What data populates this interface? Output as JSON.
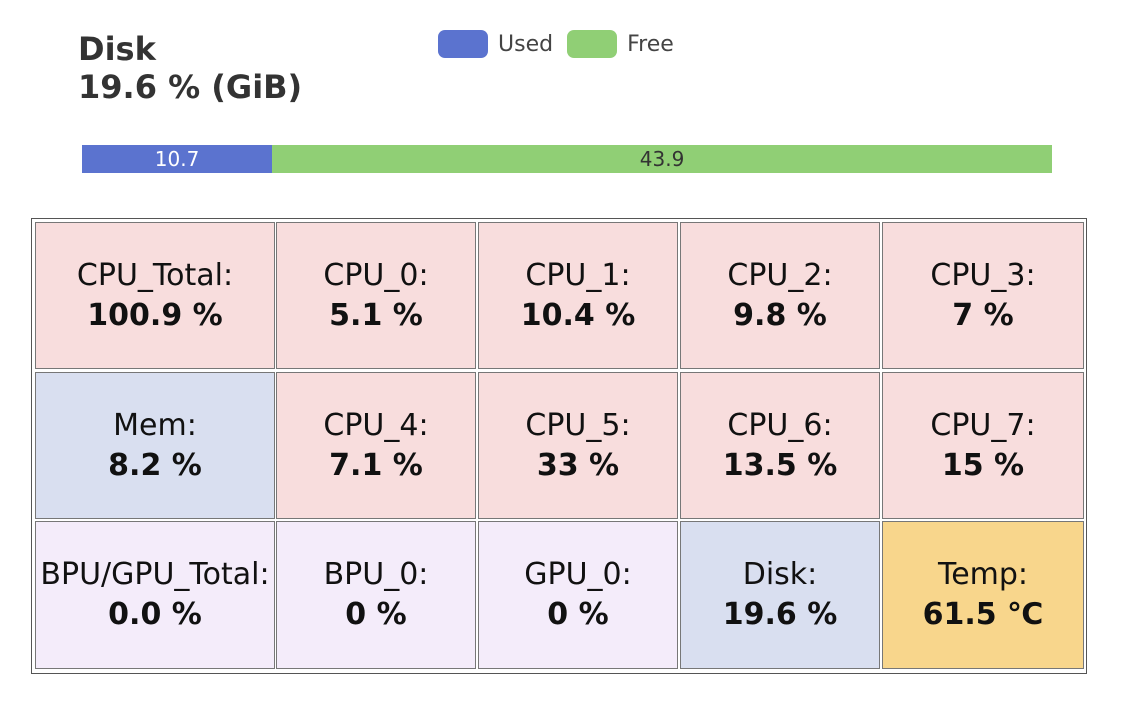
{
  "disk_header": {
    "name": "Disk",
    "summary": "19.6 % (GiB)"
  },
  "chart_data": {
    "type": "bar",
    "orientation": "horizontal",
    "stacked": true,
    "title": "",
    "legend": [
      {
        "label": "Used",
        "color": "#5b73cf"
      },
      {
        "label": "Free",
        "color": "#90cf75"
      }
    ],
    "series": [
      {
        "name": "Used",
        "values": [
          10.7
        ],
        "color": "#5b73cf"
      },
      {
        "name": "Free",
        "values": [
          43.9
        ],
        "color": "#90cf75"
      }
    ],
    "legend_position": "top",
    "grid": false
  },
  "colors": {
    "cpu": "#f8dddd",
    "mem_disk": "#d9dff0",
    "accel": "#f4ecfa",
    "temp": "#f8d68c"
  },
  "metrics": [
    {
      "name": "CPU_Total:",
      "value": "100.9 %",
      "kind": "cpu"
    },
    {
      "name": "CPU_0:",
      "value": "5.1 %",
      "kind": "cpu"
    },
    {
      "name": "CPU_1:",
      "value": "10.4 %",
      "kind": "cpu"
    },
    {
      "name": "CPU_2:",
      "value": "9.8 %",
      "kind": "cpu"
    },
    {
      "name": "CPU_3:",
      "value": "7 %",
      "kind": "cpu"
    },
    {
      "name": "Mem:",
      "value": "8.2 %",
      "kind": "mem_disk"
    },
    {
      "name": "CPU_4:",
      "value": "7.1 %",
      "kind": "cpu"
    },
    {
      "name": "CPU_5:",
      "value": "33 %",
      "kind": "cpu"
    },
    {
      "name": "CPU_6:",
      "value": "13.5 %",
      "kind": "cpu"
    },
    {
      "name": "CPU_7:",
      "value": "15 %",
      "kind": "cpu"
    },
    {
      "name": "BPU/GPU_Total:",
      "value": "0.0 %",
      "kind": "accel"
    },
    {
      "name": "BPU_0:",
      "value": "0 %",
      "kind": "accel"
    },
    {
      "name": "GPU_0:",
      "value": "0 %",
      "kind": "accel"
    },
    {
      "name": "Disk:",
      "value": "19.6 %",
      "kind": "mem_disk"
    },
    {
      "name": "Temp:",
      "value": "61.5 ℃",
      "kind": "temp"
    }
  ]
}
